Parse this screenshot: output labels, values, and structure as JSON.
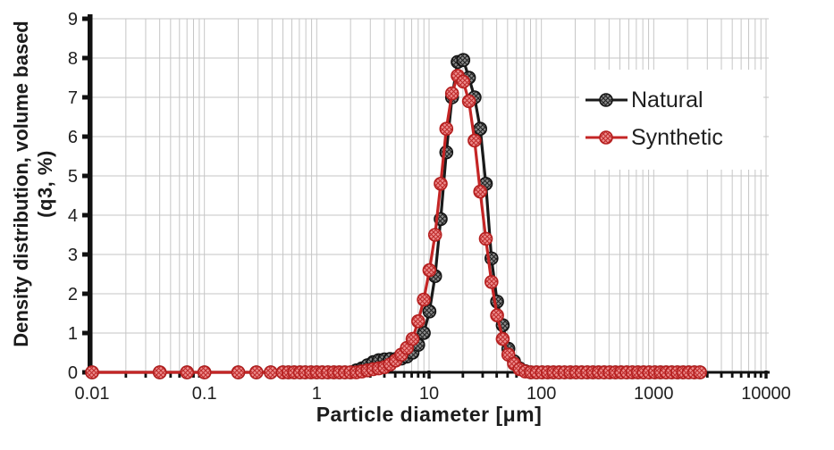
{
  "figure": {
    "xlabel": "Particle diameter [μm]",
    "ylabel_line1": "Density distribution, volume based",
    "ylabel_line2": "(q3, %)"
  },
  "chart_data": {
    "type": "line",
    "x_scale": "log",
    "xlabel": "Particle diameter [μm]",
    "ylabel": "Density distribution, volume based (q3, %)",
    "xlim": [
      0.01,
      10000
    ],
    "ylim": [
      0,
      9
    ],
    "grid": true,
    "legend_position": "inside-right",
    "x_tick_labels": [
      "0.01",
      "0.1",
      "1",
      "10",
      "100",
      "1000",
      "10000"
    ],
    "x_ticks": [
      0.01,
      0.1,
      1,
      10,
      100,
      1000,
      10000
    ],
    "y_ticks": [
      0,
      1,
      2,
      3,
      4,
      5,
      6,
      7,
      8,
      9
    ],
    "colors": {
      "grid": "#c6c6c6",
      "axis": "#111111",
      "text": "#1f1f1f",
      "natural_line": "#1a1a1a",
      "natural_marker_fill": "#8d8d8d",
      "natural_marker_stroke": "#141414",
      "synthetic_line": "#c42525",
      "synthetic_marker_fill": "#ee8f8f",
      "synthetic_marker_stroke": "#b51f1f"
    },
    "x": [
      0.01,
      0.04,
      0.07,
      0.1,
      0.2,
      0.29,
      0.39,
      0.5,
      0.56,
      0.63,
      0.71,
      0.79,
      0.89,
      1.0,
      1.12,
      1.26,
      1.42,
      1.59,
      1.78,
      2.0,
      2.25,
      2.52,
      2.83,
      3.18,
      3.56,
      4.0,
      4.49,
      5.04,
      5.66,
      6.35,
      7.13,
      8.0,
      8.98,
      10.08,
      11.31,
      12.7,
      14.25,
      16.0,
      17.96,
      20.16,
      22.63,
      25.4,
      28.51,
      32.0,
      35.92,
      40.32,
      45.25,
      50.8,
      57.02,
      64.0,
      71.84,
      80.63,
      90.51,
      101.59,
      114.04,
      128.0,
      143.68,
      161.27,
      181.02,
      203.19,
      228.07,
      256.0,
      287.35,
      322.54,
      362.04,
      406.37,
      456.14,
      512.0,
      574.7,
      645.08,
      724.08,
      812.75,
      912.3,
      1024.0,
      1149.4,
      1290.16,
      1448.15,
      1625.5,
      1824.6,
      2048.0,
      2298.8,
      2580.3
    ],
    "series": [
      {
        "name": "Natural",
        "values": [
          0,
          0,
          0,
          0,
          0,
          0,
          0,
          0,
          0,
          0,
          0,
          0,
          0,
          0,
          0,
          0,
          0,
          0,
          0,
          0,
          0.05,
          0.1,
          0.18,
          0.26,
          0.31,
          0.33,
          0.34,
          0.34,
          0.35,
          0.4,
          0.5,
          0.7,
          1.0,
          1.55,
          2.45,
          3.9,
          5.6,
          7.0,
          7.9,
          7.95,
          7.5,
          7.0,
          6.2,
          4.8,
          2.9,
          1.8,
          1.2,
          0.6,
          0.28,
          0.1,
          0.03,
          0,
          0,
          0,
          0,
          0,
          0,
          0,
          0,
          0,
          0,
          0,
          0,
          0,
          0,
          0,
          0,
          0,
          0,
          0,
          0,
          0,
          0,
          0,
          0,
          0,
          0,
          0,
          0,
          0,
          0,
          0
        ]
      },
      {
        "name": "Synthetic",
        "values": [
          0,
          0,
          0,
          0,
          0,
          0,
          0,
          0,
          0,
          0,
          0,
          0,
          0,
          0,
          0,
          0,
          0,
          0,
          0,
          0,
          0,
          0.02,
          0.05,
          0.08,
          0.1,
          0.13,
          0.2,
          0.3,
          0.45,
          0.62,
          0.85,
          1.3,
          1.85,
          2.6,
          3.5,
          4.8,
          6.2,
          7.1,
          7.55,
          7.4,
          6.9,
          5.9,
          4.6,
          3.4,
          2.3,
          1.45,
          0.85,
          0.45,
          0.22,
          0.08,
          0.02,
          0,
          0,
          0,
          0,
          0,
          0,
          0,
          0,
          0,
          0,
          0,
          0,
          0,
          0,
          0,
          0,
          0,
          0,
          0,
          0,
          0,
          0,
          0,
          0,
          0,
          0,
          0,
          0,
          0,
          0,
          0
        ]
      }
    ]
  }
}
